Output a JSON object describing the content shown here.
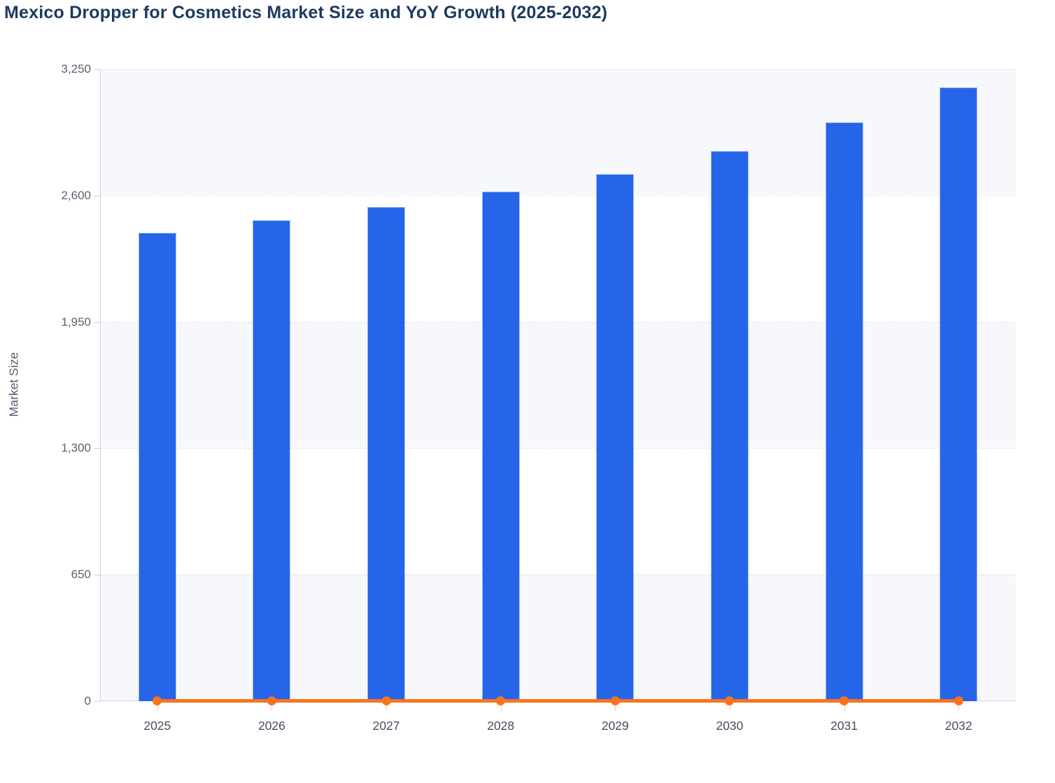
{
  "title": "Mexico Dropper for Cosmetics Market Size and YoY Growth (2025-2032)",
  "colors": {
    "bar_blue": "#2665e9",
    "yoy_orange": "#f7741c",
    "title_navy": "#1d3a5f",
    "band_tint": "#f7f8fb",
    "gridline": "#e0e3eb",
    "axis_line": "#c9d2e8",
    "y_tick_text": "#5a6270",
    "x_tick_text": "#454e5d"
  },
  "chart_data": {
    "type": "bar",
    "title": "Mexico Dropper for Cosmetics Market Size and YoY Growth (2025-2032)",
    "xlabel": "",
    "ylabel": "Market Size",
    "categories": [
      "2025",
      "2026",
      "2027",
      "2028",
      "2029",
      "2030",
      "2031",
      "2032"
    ],
    "series": [
      {
        "name": "Market Size",
        "kind": "bar",
        "color": "#2665e9",
        "values": [
          2410,
          2475,
          2540,
          2620,
          2710,
          2830,
          2975,
          3155
        ]
      },
      {
        "name": "YoY Growth",
        "kind": "line",
        "color": "#f7741c",
        "values": [
          0,
          0,
          0,
          0,
          0,
          0,
          0,
          0
        ],
        "axis_note": "line with round markers sits on the baseline (~0 of the Market Size axis)"
      }
    ],
    "ylim": [
      0,
      3250
    ],
    "yticks": {
      "values": [
        0,
        650,
        1300,
        1950,
        2600,
        3250
      ],
      "labels": [
        "0",
        "650",
        "1,300",
        "1,950",
        "2,600",
        "3,250"
      ]
    },
    "grid": "horizontal dashed gridlines, alternating tinted bands",
    "legend": "none"
  }
}
